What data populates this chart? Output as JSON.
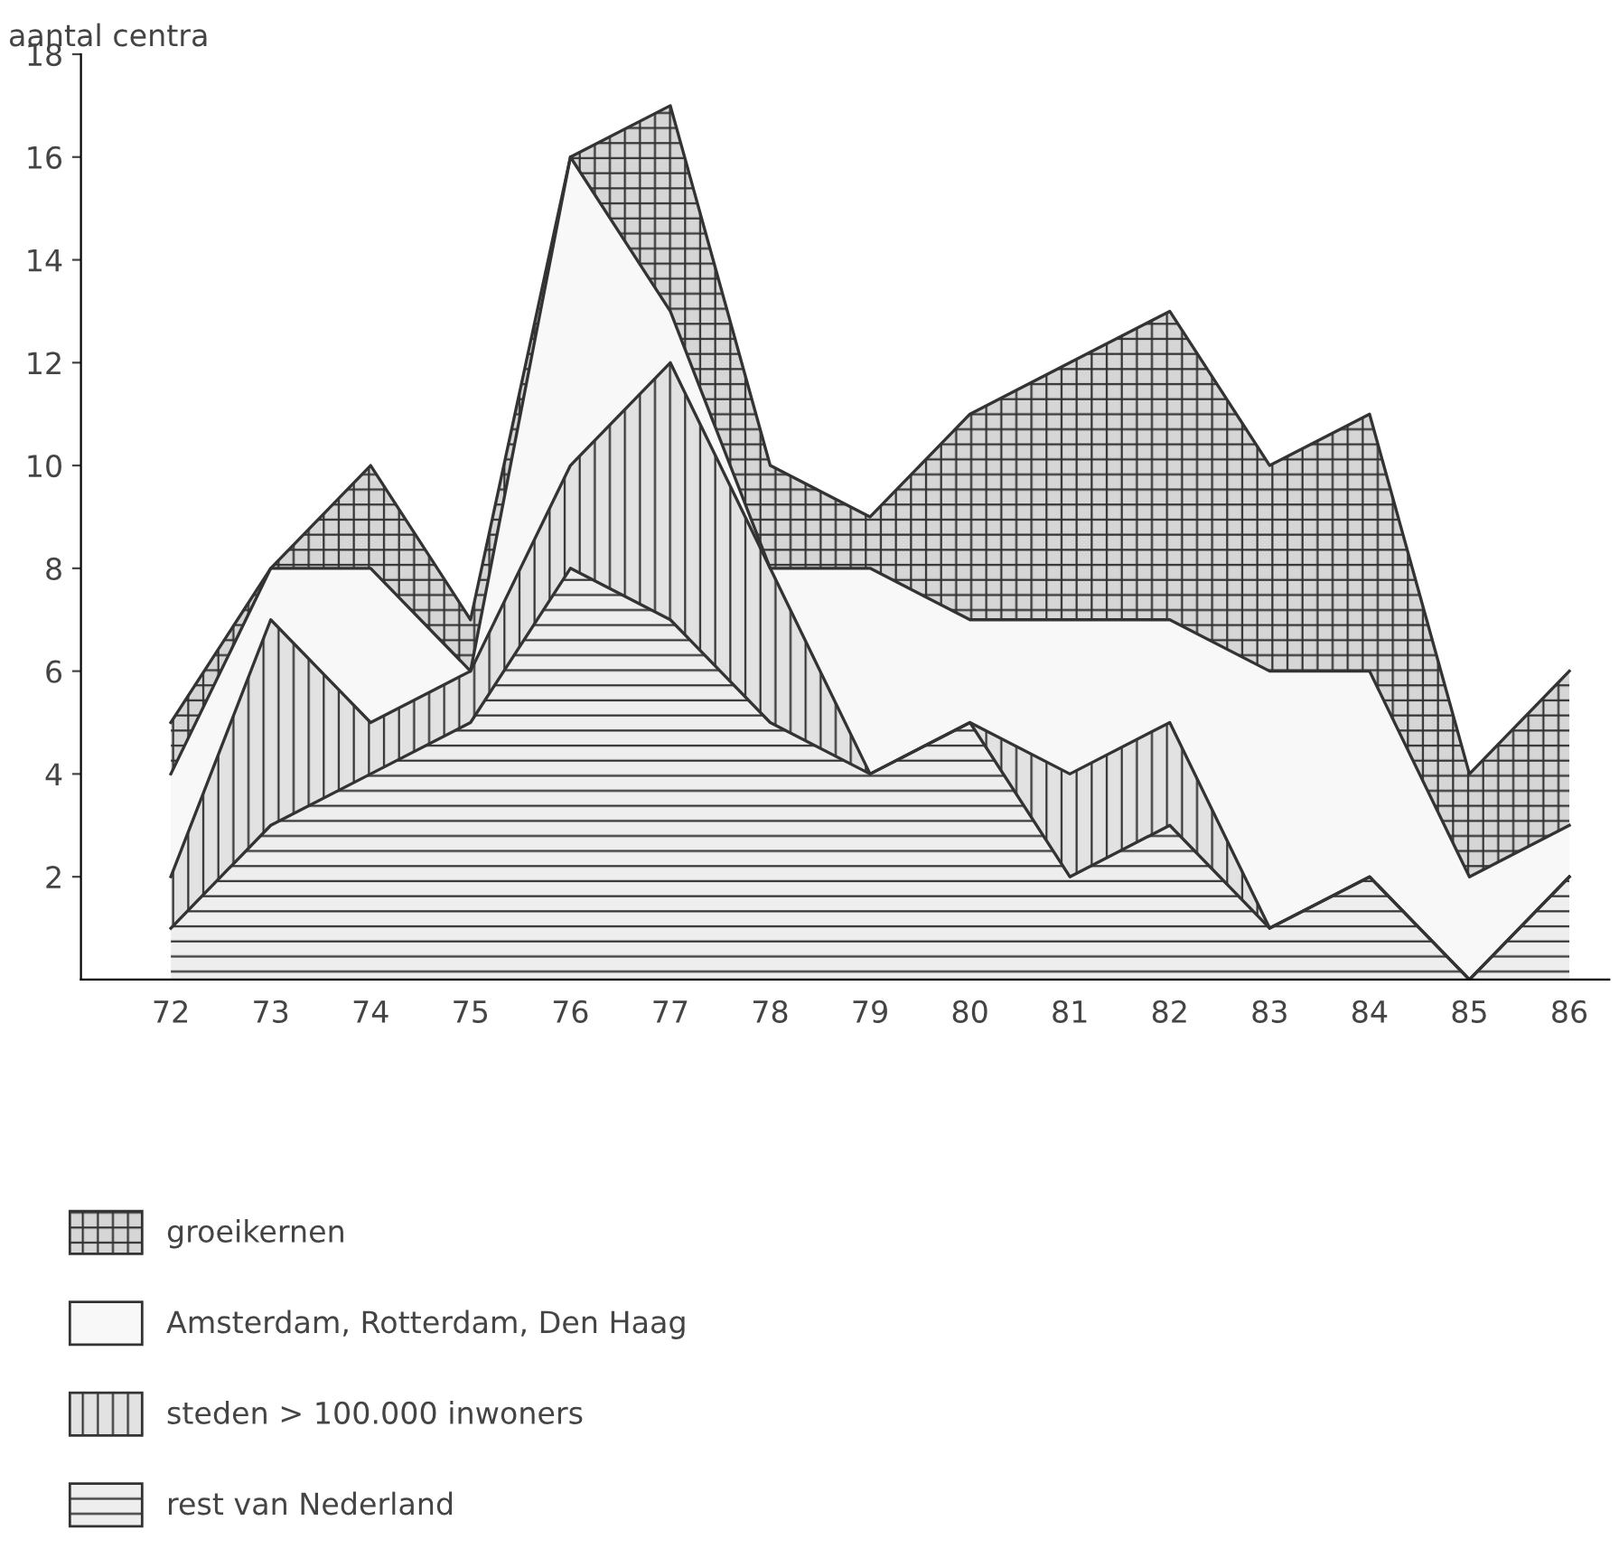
{
  "chart_data": {
    "type": "area",
    "stacked": true,
    "ylabel": "aantal centra",
    "categories": [
      "72",
      "73",
      "74",
      "75",
      "76",
      "77",
      "78",
      "79",
      "80",
      "81",
      "82",
      "83",
      "84",
      "85",
      "86"
    ],
    "series": [
      {
        "name": "rest van Nederland",
        "color": "#eeeeee",
        "values": [
          1,
          3,
          4,
          5,
          8,
          7,
          5,
          4,
          5,
          2,
          3,
          1,
          2,
          0,
          2
        ]
      },
      {
        "name": "steden > 100.000 inwoners",
        "color": "#e2e2e2",
        "values": [
          1,
          4,
          1,
          1,
          2,
          5,
          3,
          0,
          0,
          2,
          2,
          0,
          0,
          0,
          0
        ]
      },
      {
        "name": "Amsterdam, Rotterdam, Den Haag",
        "color": "#f8f8f8",
        "values": [
          2,
          1,
          3,
          0,
          6,
          1,
          0,
          4,
          2,
          3,
          2,
          5,
          4,
          2,
          1
        ]
      },
      {
        "name": "groeikernen",
        "color": "#d6d6d6",
        "values": [
          1,
          0,
          2,
          1,
          0,
          4,
          2,
          1,
          4,
          5,
          6,
          4,
          5,
          2,
          3
        ]
      }
    ],
    "ylim": [
      0,
      18
    ],
    "yticks": [
      2,
      4,
      6,
      8,
      10,
      12,
      14,
      16,
      18
    ],
    "grid": false,
    "legend": "bottom left"
  }
}
